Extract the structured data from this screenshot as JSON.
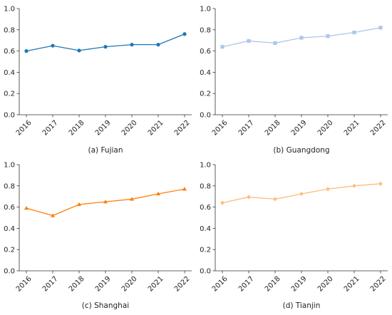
{
  "chart_data": [
    {
      "type": "line",
      "caption": "(a) Fujian",
      "categories": [
        "2016",
        "2017",
        "2018",
        "2019",
        "2020",
        "2021",
        "2022"
      ],
      "series": [
        {
          "values": [
            0.6,
            0.65,
            0.605,
            0.64,
            0.66,
            0.66,
            0.76
          ],
          "color": "#1f77b4",
          "marker": "circle"
        }
      ],
      "ylim": [
        0,
        1.0
      ],
      "yticks": [
        "0.0",
        "0.2",
        "0.4",
        "0.6",
        "0.8",
        "1.0"
      ],
      "grid": false
    },
    {
      "type": "line",
      "caption": "(b) Guangdong",
      "categories": [
        "2016",
        "2017",
        "2018",
        "2019",
        "2020",
        "2021",
        "2022"
      ],
      "series": [
        {
          "values": [
            0.64,
            0.695,
            0.675,
            0.725,
            0.74,
            0.775,
            0.82
          ],
          "color": "#aec7e8",
          "marker": "square"
        }
      ],
      "ylim": [
        0,
        1.0
      ],
      "yticks": [
        "0.0",
        "0.2",
        "0.4",
        "0.6",
        "0.8",
        "1.0"
      ],
      "grid": false
    },
    {
      "type": "line",
      "caption": "(c) Shanghai",
      "categories": [
        "2016",
        "2017",
        "2018",
        "2019",
        "2020",
        "2021",
        "2022"
      ],
      "series": [
        {
          "values": [
            0.59,
            0.52,
            0.625,
            0.65,
            0.675,
            0.725,
            0.77
          ],
          "color": "#ff7f0e",
          "marker": "triangle"
        }
      ],
      "ylim": [
        0,
        1.0
      ],
      "yticks": [
        "0.0",
        "0.2",
        "0.4",
        "0.6",
        "0.8",
        "1.0"
      ],
      "grid": false
    },
    {
      "type": "line",
      "caption": "(d) Tianjin",
      "categories": [
        "2016",
        "2017",
        "2018",
        "2019",
        "2020",
        "2021",
        "2022"
      ],
      "series": [
        {
          "values": [
            0.64,
            0.695,
            0.675,
            0.725,
            0.77,
            0.8,
            0.82
          ],
          "color": "#ffbb78",
          "marker": "diamond"
        }
      ],
      "ylim": [
        0,
        1.0
      ],
      "yticks": [
        "0.0",
        "0.2",
        "0.4",
        "0.6",
        "0.8",
        "1.0"
      ],
      "grid": false
    }
  ]
}
